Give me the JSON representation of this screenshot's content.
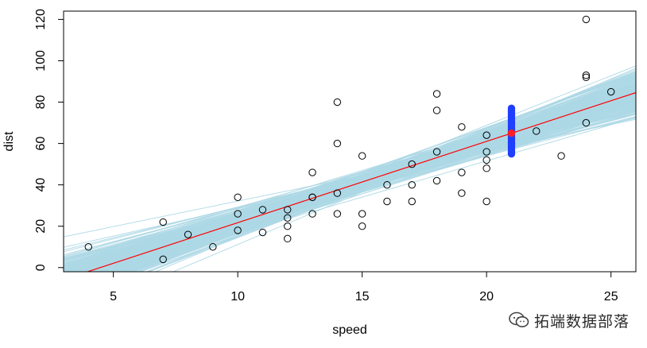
{
  "chart_data": {
    "type": "scatter",
    "xlabel": "speed",
    "ylabel": "dist",
    "xlim": [
      3,
      26
    ],
    "ylim": [
      -2,
      124
    ],
    "xticks": [
      5,
      10,
      15,
      20,
      25
    ],
    "yticks": [
      0,
      20,
      40,
      60,
      80,
      100,
      120
    ],
    "grid": false,
    "points": [
      [
        4,
        10
      ],
      [
        7,
        22
      ],
      [
        7,
        4
      ],
      [
        8,
        16
      ],
      [
        9,
        10
      ],
      [
        10,
        18
      ],
      [
        10,
        26
      ],
      [
        10,
        34
      ],
      [
        11,
        17
      ],
      [
        11,
        28
      ],
      [
        12,
        14
      ],
      [
        12,
        20
      ],
      [
        12,
        24
      ],
      [
        12,
        28
      ],
      [
        13,
        26
      ],
      [
        13,
        34
      ],
      [
        13,
        34
      ],
      [
        13,
        46
      ],
      [
        14,
        26
      ],
      [
        14,
        36
      ],
      [
        14,
        60
      ],
      [
        14,
        80
      ],
      [
        15,
        20
      ],
      [
        15,
        26
      ],
      [
        15,
        54
      ],
      [
        16,
        32
      ],
      [
        16,
        40
      ],
      [
        17,
        32
      ],
      [
        17,
        40
      ],
      [
        17,
        50
      ],
      [
        18,
        42
      ],
      [
        18,
        56
      ],
      [
        18,
        76
      ],
      [
        18,
        84
      ],
      [
        19,
        36
      ],
      [
        19,
        46
      ],
      [
        19,
        68
      ],
      [
        20,
        32
      ],
      [
        20,
        48
      ],
      [
        20,
        52
      ],
      [
        20,
        56
      ],
      [
        20,
        64
      ],
      [
        22,
        66
      ],
      [
        23,
        54
      ],
      [
        24,
        70
      ],
      [
        24,
        92
      ],
      [
        24,
        93
      ],
      [
        24,
        120
      ],
      [
        25,
        85
      ]
    ],
    "fit_line": {
      "intercept": -17.58,
      "slope": 3.93,
      "color": "#ff0000"
    },
    "posterior_lines": {
      "color": "#add8e6",
      "intercept_mean": -17.58,
      "slope_mean": 3.93,
      "intercept_spread": 7.0,
      "slope_spread": 0.42,
      "count": 300
    },
    "prediction": {
      "x": 21,
      "mean": 65,
      "samples": [
        55,
        56,
        57,
        58,
        59,
        60,
        61,
        62,
        63,
        64,
        65,
        66,
        67,
        68,
        69,
        70,
        71,
        72,
        73,
        74,
        75,
        76,
        77
      ],
      "sample_color": "#1f3fff",
      "mean_color": "#ff2020"
    }
  },
  "watermark": {
    "icon": "wechat-icon",
    "text": "拓端数据部落"
  }
}
